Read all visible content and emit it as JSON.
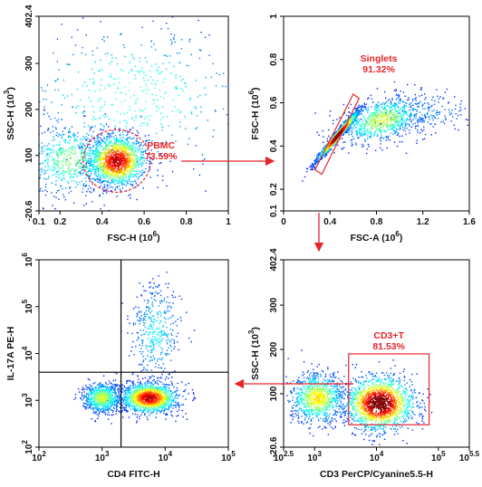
{
  "colors": {
    "gate": "#e8242b",
    "axis": "#000000",
    "arrow": "#e8242b"
  },
  "chart_data": [
    {
      "id": "panel_a",
      "type": "scatter",
      "subtype": "flow-cytometry-density-dot-plot",
      "xlabel": {
        "text": "FSC-H",
        "exp": "6"
      },
      "ylabel": {
        "text": "SSC-H",
        "exp": "3"
      },
      "x_scale": "linear",
      "xlim": [
        0.1,
        1.0
      ],
      "y_scale": "linear",
      "ylim": [
        -20.6,
        402.4
      ],
      "x_ticks": [
        {
          "v": 0.1,
          "t": "0.1"
        },
        {
          "v": 0.2,
          "t": "0.2"
        },
        {
          "v": 0.4,
          "t": "0.4"
        },
        {
          "v": 0.6,
          "t": "0.6"
        },
        {
          "v": 0.8,
          "t": "0.8"
        },
        {
          "v": 1.0,
          "t": "1"
        }
      ],
      "y_ticks": [
        {
          "v": -20.6,
          "t": "-20.6"
        },
        {
          "v": 100,
          "t": "100"
        },
        {
          "v": 200,
          "t": "200"
        },
        {
          "v": 300,
          "t": "300"
        },
        {
          "v": 402.4,
          "t": "402.4"
        }
      ],
      "populations": [
        {
          "center": [
            0.47,
            88
          ],
          "spread": [
            0.07,
            28
          ],
          "weight": 0.55,
          "angle": 0
        },
        {
          "center": [
            0.25,
            90
          ],
          "spread": [
            0.11,
            40
          ],
          "weight": 0.25,
          "angle": 0
        },
        {
          "center": [
            0.55,
            230
          ],
          "spread": [
            0.3,
            80
          ],
          "weight": 0.2,
          "angle": 0
        }
      ],
      "gates": [
        {
          "name": "PBMC",
          "value": "73.59%",
          "shape": "ellipse",
          "center": [
            0.47,
            88
          ],
          "radii": [
            0.16,
            68
          ],
          "label_at": [
            0.68,
            115
          ]
        }
      ]
    },
    {
      "id": "panel_b",
      "type": "scatter",
      "subtype": "flow-cytometry-density-dot-plot",
      "xlabel": {
        "text": "FSC-A",
        "exp": "6"
      },
      "ylabel": {
        "text": "FSC-H",
        "exp": "6"
      },
      "x_scale": "linear",
      "xlim": [
        0.0,
        1.6
      ],
      "y_scale": "linear",
      "ylim": [
        0.1,
        1.0
      ],
      "x_ticks": [
        {
          "v": 0,
          "t": "0"
        },
        {
          "v": 0.4,
          "t": "0.4"
        },
        {
          "v": 0.8,
          "t": "0.8"
        },
        {
          "v": 1.2,
          "t": "1.2"
        },
        {
          "v": 1.6,
          "t": "1.6"
        }
      ],
      "y_ticks": [
        {
          "v": 0.1,
          "t": "0.1"
        },
        {
          "v": 0.2,
          "t": "0.2"
        },
        {
          "v": 0.4,
          "t": "0.4"
        },
        {
          "v": 0.6,
          "t": "0.6"
        },
        {
          "v": 0.8,
          "t": "0.8"
        },
        {
          "v": 1.0,
          "t": "1"
        }
      ],
      "populations": [
        {
          "center": [
            0.47,
            0.45
          ],
          "spread": [
            0.14,
            0.012
          ],
          "weight": 0.62,
          "angle": 0.9
        },
        {
          "center": [
            0.85,
            0.52
          ],
          "spread": [
            0.18,
            0.05
          ],
          "weight": 0.3,
          "angle": 0.25
        },
        {
          "center": [
            1.2,
            0.55
          ],
          "spread": [
            0.22,
            0.05
          ],
          "weight": 0.08,
          "angle": 0.1
        }
      ],
      "gates": [
        {
          "name": "Singlets",
          "value": "91.32%",
          "shape": "polygon",
          "points": [
            [
              0.27,
              0.29
            ],
            [
              0.33,
              0.27
            ],
            [
              0.65,
              0.62
            ],
            [
              0.6,
              0.64
            ]
          ],
          "label_at": [
            0.82,
            0.79
          ]
        }
      ]
    },
    {
      "id": "panel_c",
      "type": "scatter",
      "subtype": "flow-cytometry-density-dot-plot",
      "xlabel": {
        "text": "CD4 FITC-H",
        "exp": ""
      },
      "ylabel": {
        "text": "IL-17A PE-H",
        "exp": ""
      },
      "x_scale": "log",
      "xlim": [
        2,
        5
      ],
      "y_scale": "log",
      "ylim": [
        2,
        6
      ],
      "x_ticks": [
        {
          "v": 2,
          "t": "10",
          "e": "2"
        },
        {
          "v": 3,
          "t": "10",
          "e": "3"
        },
        {
          "v": 4,
          "t": "10",
          "e": "4"
        },
        {
          "v": 5,
          "t": "10",
          "e": "5"
        }
      ],
      "y_ticks": [
        {
          "v": 2,
          "t": "10",
          "e": "2"
        },
        {
          "v": 3,
          "t": "10",
          "e": "3"
        },
        {
          "v": 4,
          "t": "10",
          "e": "4"
        },
        {
          "v": 5,
          "t": "10",
          "e": "5"
        },
        {
          "v": 6,
          "t": "10",
          "e": "6"
        }
      ],
      "populations": [
        {
          "center": [
            3.0,
            3.05
          ],
          "spread": [
            0.15,
            0.16
          ],
          "weight": 0.3,
          "angle": 0
        },
        {
          "center": [
            3.75,
            3.05
          ],
          "spread": [
            0.22,
            0.16
          ],
          "weight": 0.55,
          "angle": 0
        },
        {
          "center": [
            3.85,
            4.45
          ],
          "spread": [
            0.2,
            0.55
          ],
          "weight": 0.15,
          "angle": 0
        }
      ],
      "quadrant": {
        "x": 3.3,
        "y": 3.6
      },
      "gates": []
    },
    {
      "id": "panel_d",
      "type": "scatter",
      "subtype": "flow-cytometry-density-dot-plot",
      "xlabel": {
        "text": "CD3 PerCP/Cyanine5.5-H",
        "exp": ""
      },
      "ylabel": {
        "text": "SSC-H",
        "exp": "3"
      },
      "x_scale": "log",
      "xlim": [
        2.5,
        5.5
      ],
      "y_scale": "linear",
      "ylim": [
        -20.6,
        402.4
      ],
      "x_ticks": [
        {
          "v": 2.5,
          "t": "10",
          "e": "2.5"
        },
        {
          "v": 3,
          "t": "10",
          "e": "3"
        },
        {
          "v": 4,
          "t": "10",
          "e": "4"
        },
        {
          "v": 5,
          "t": "10",
          "e": "5"
        },
        {
          "v": 5.5,
          "t": "10",
          "e": "5.5"
        }
      ],
      "y_ticks": [
        {
          "v": -20.6,
          "t": "-20.6"
        },
        {
          "v": 100,
          "t": "100"
        },
        {
          "v": 200,
          "t": "200"
        },
        {
          "v": 300,
          "t": "300"
        },
        {
          "v": 402.4,
          "t": "402.4"
        }
      ],
      "populations": [
        {
          "center": [
            3.05,
            90
          ],
          "spread": [
            0.22,
            28
          ],
          "weight": 0.35,
          "angle": 0
        },
        {
          "center": [
            4.05,
            78
          ],
          "spread": [
            0.28,
            30
          ],
          "weight": 0.65,
          "angle": 0
        }
      ],
      "gates": [
        {
          "name": "CD3+T",
          "value": "81.53%",
          "shape": "rect",
          "x": [
            3.55,
            4.85
          ],
          "y": [
            30,
            190
          ],
          "label_at": [
            4.2,
            225
          ]
        }
      ]
    }
  ],
  "arrows": [
    {
      "from": "panel_a",
      "to": "panel_b"
    },
    {
      "from": "panel_b",
      "to": "panel_d"
    },
    {
      "from": "panel_d",
      "to": "panel_c"
    }
  ]
}
